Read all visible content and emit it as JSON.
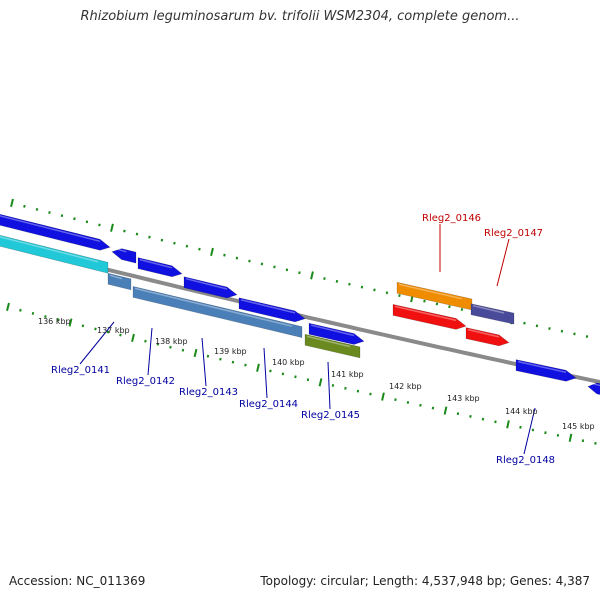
{
  "title": "Rhizobium leguminosarum bv. trifolii WSM2304, complete genom...",
  "footer": {
    "accession": "Accession: NC_011369",
    "summary": "Topology: circular; Length: 4,537,948 bp; Genes: 4,387"
  },
  "colors": {
    "backbone": "#8a8a8a",
    "ticks": "#1a8a1a",
    "label_forward": "#c00000",
    "label_reverse": "#0000a0",
    "blue": "#1010e0",
    "cyan": "#20c8d8",
    "steelblue": "#4a7fb8",
    "olive": "#6a8a20",
    "orange": "#f08c00",
    "slate": "#4a4a9a",
    "red": "#f01010"
  },
  "ruler_labels": [
    "136 kbp",
    "137 kbp",
    "138 kbp",
    "139 kbp",
    "140 kbp",
    "141 kbp",
    "142 kbp",
    "143 kbp",
    "144 kbp",
    "145 kbp"
  ],
  "gene_labels": [
    {
      "text": "Rleg2_0146",
      "strand": "forward"
    },
    {
      "text": "Rleg2_0147",
      "strand": "forward"
    },
    {
      "text": "Rleg2_0141",
      "strand": "reverse"
    },
    {
      "text": "Rleg2_0142",
      "strand": "reverse"
    },
    {
      "text": "Rleg2_0143",
      "strand": "reverse"
    },
    {
      "text": "Rleg2_0144",
      "strand": "reverse"
    },
    {
      "text": "Rleg2_0145",
      "strand": "reverse"
    },
    {
      "text": "Rleg2_0148",
      "strand": "reverse"
    }
  ]
}
